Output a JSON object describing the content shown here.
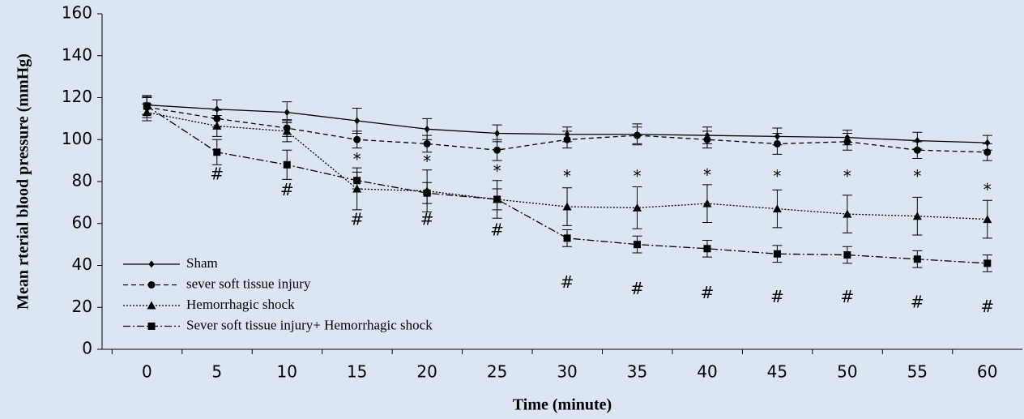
{
  "chart_data": {
    "type": "line",
    "xlabel": "Time (minute)",
    "ylabel": "Mean rterial blood pressure (mmHg)",
    "x": [
      0,
      5,
      10,
      15,
      20,
      25,
      30,
      35,
      40,
      45,
      50,
      55,
      60
    ],
    "xlim": [
      -3.2,
      62.5
    ],
    "xticks": [
      0,
      5,
      10,
      15,
      20,
      25,
      30,
      35,
      40,
      45,
      50,
      55,
      60
    ],
    "ylim": [
      0,
      160
    ],
    "yticks": [
      0,
      20,
      40,
      60,
      80,
      100,
      120,
      140,
      160
    ],
    "legend": "lower left",
    "series": [
      {
        "name": "Sham",
        "color": "#000000",
        "dash": "solid",
        "marker": "diamond",
        "values": [
          116.5,
          114.5,
          113,
          109,
          105,
          103,
          102.5,
          102.5,
          102,
          101.5,
          101,
          99.5,
          98.5
        ],
        "errors": [
          4.5,
          4.5,
          5,
          6,
          5,
          4,
          3.5,
          5,
          4,
          4,
          3.5,
          4,
          3.5
        ]
      },
      {
        "name": "sever soft tissue injury",
        "color": "#000000",
        "dash": "dashed",
        "marker": "circle",
        "values": [
          115.5,
          110,
          105.5,
          100,
          98,
          95,
          100,
          102,
          100,
          98,
          99,
          95,
          94
        ],
        "errors": [
          5,
          4,
          4,
          4,
          4,
          5,
          4,
          4,
          4,
          5,
          4,
          4,
          4
        ]
      },
      {
        "name": "Hemorrhagic shock",
        "color": "#000000",
        "dash": "dotted",
        "marker": "triangle",
        "values": [
          113,
          106.5,
          104,
          76.5,
          75.5,
          71.5,
          68,
          67.5,
          69.5,
          67,
          64.5,
          63.5,
          62
        ],
        "errors": [
          4,
          5,
          5,
          10,
          10,
          9,
          9,
          10,
          9,
          9,
          9,
          9,
          9
        ]
      },
      {
        "name": "Sever soft tissue injury+ Hemorrhagic shock",
        "color": "#000000",
        "dash": "dashdot",
        "marker": "square",
        "values": [
          116,
          94,
          88,
          80.5,
          74.5,
          71.5,
          53,
          50,
          48,
          45.5,
          45,
          43,
          41
        ],
        "errors": [
          4,
          6,
          7,
          4,
          5,
          5,
          4,
          4,
          4,
          4,
          4,
          4,
          4
        ]
      }
    ],
    "annotations": [
      {
        "text": "*",
        "x": 15,
        "y": 90
      },
      {
        "text": "*",
        "x": 20,
        "y": 89
      },
      {
        "text": "*",
        "x": 25,
        "y": 84.5
      },
      {
        "text": "*",
        "x": 30,
        "y": 82
      },
      {
        "text": "*",
        "x": 35,
        "y": 82
      },
      {
        "text": "*",
        "x": 40,
        "y": 82.5
      },
      {
        "text": "*",
        "x": 45,
        "y": 82
      },
      {
        "text": "*",
        "x": 50,
        "y": 82
      },
      {
        "text": "*",
        "x": 55,
        "y": 82
      },
      {
        "text": "*",
        "x": 60,
        "y": 75.5
      },
      {
        "text": "#",
        "x": 5,
        "y": 83
      },
      {
        "text": "#",
        "x": 10,
        "y": 75.5
      },
      {
        "text": "#",
        "x": 15,
        "y": 61.5
      },
      {
        "text": "#",
        "x": 20,
        "y": 61.5
      },
      {
        "text": "#",
        "x": 25,
        "y": 56.5
      },
      {
        "text": "#",
        "x": 30,
        "y": 31.5
      },
      {
        "text": "#",
        "x": 35,
        "y": 28.5
      },
      {
        "text": "#",
        "x": 40,
        "y": 26.5
      },
      {
        "text": "#",
        "x": 45,
        "y": 24.5
      },
      {
        "text": "#",
        "x": 50,
        "y": 24.5
      },
      {
        "text": "#",
        "x": 55,
        "y": 22
      },
      {
        "text": "#",
        "x": 60,
        "y": 20
      }
    ]
  }
}
